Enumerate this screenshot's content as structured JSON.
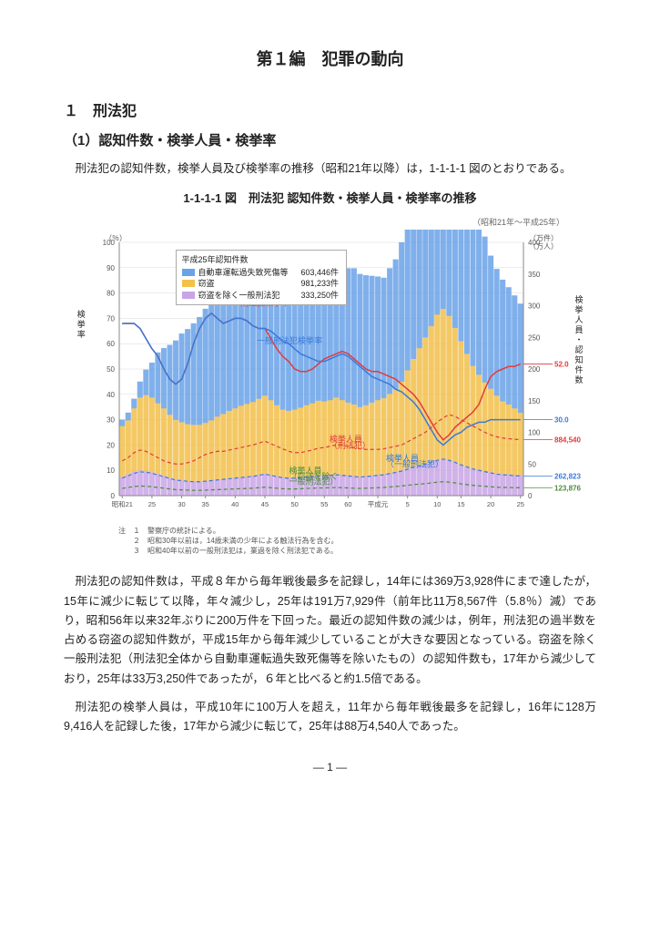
{
  "title": "第１編　犯罪の動向",
  "section_number": "１　刑法犯",
  "subsection": "（1）認知件数・検挙人員・検挙率",
  "intro": "刑法犯の認知件数，検挙人員及び検挙率の推移（昭和21年以降）は，1-1-1-1 図のとおりである。",
  "chart": {
    "title": "1-1-1-1 図　刑法犯 認知件数・検挙人員・検挙率の推移",
    "range_note": "（昭和21年～平成25年）",
    "ylabel_left_unit": "（％）",
    "ylabel_right_unit": "（万件）\n（万人）",
    "ylabel_left_text": "検挙率",
    "ylabel_right_text": "検挙人員・認知件数",
    "ylim_left": [
      0,
      100
    ],
    "ytick_left_step": 10,
    "ylim_right": [
      0,
      400
    ],
    "ytick_right_step": 50,
    "x_categories": [
      "昭和21",
      "25",
      "30",
      "35",
      "40",
      "45",
      "50",
      "55",
      "60",
      "平成元",
      "5",
      "10",
      "15",
      "20",
      "25"
    ],
    "legend_title": "平成25年認知件数",
    "legend_items": [
      {
        "label": "自動車運転過失致死傷等",
        "value": "603,446件",
        "color": "#6aa3e8"
      },
      {
        "label": "窃盗",
        "value": "981,233件",
        "color": "#f3c04b"
      },
      {
        "label": "窃盗を除く一般刑法犯",
        "value": "333,250件",
        "color": "#c9a5e6"
      }
    ],
    "series": {
      "auto_bars": {
        "color": "#6aa3e8",
        "values": [
          10,
          12,
          15,
          25,
          40,
          55,
          80,
          95,
          110,
          125,
          140,
          150,
          160,
          170,
          180,
          188,
          192,
          190,
          195,
          198,
          200,
          205,
          208,
          212,
          215,
          210,
          215,
          218,
          216,
          210,
          215,
          218,
          216,
          214,
          210,
          208,
          205,
          200,
          212,
          215,
          210,
          205,
          200,
          195,
          190,
          198,
          205,
          220,
          245,
          265,
          285,
          305,
          330,
          350,
          365,
          360,
          350,
          330,
          300,
          275,
          250,
          230,
          210,
          200,
          192,
          185,
          178,
          172
        ]
      },
      "theft_bars": {
        "color": "#f3c04b",
        "values": [
          80,
          85,
          100,
          115,
          120,
          118,
          112,
          107,
          100,
          95,
          92,
          90,
          90,
          90,
          92,
          95,
          100,
          103,
          107,
          110,
          113,
          115,
          117,
          120,
          123,
          118,
          112,
          107,
          106,
          108,
          110,
          113,
          115,
          118,
          117,
          118,
          121,
          118,
          115,
          113,
          110,
          112,
          115,
          118,
          120,
          125,
          130,
          140,
          155,
          170,
          185,
          200,
          215,
          230,
          237,
          228,
          212,
          195,
          178,
          162,
          150,
          140,
          132,
          123,
          115,
          110,
          105,
          98
        ]
      },
      "other_bars": {
        "color": "#c9a5e6",
        "values": [
          30,
          34,
          38,
          40,
          39,
          37,
          34,
          31,
          28,
          25,
          24,
          23,
          22,
          22,
          23,
          24,
          25,
          26,
          27,
          28,
          29,
          30,
          31,
          33,
          35,
          33,
          31,
          29,
          28,
          28,
          29,
          30,
          31,
          32,
          32,
          33,
          34,
          33,
          32,
          31,
          30,
          31,
          32,
          33,
          34,
          36,
          38,
          40,
          43,
          46,
          48,
          50,
          53,
          56,
          58,
          56,
          53,
          49,
          46,
          43,
          41,
          39,
          37,
          35,
          34,
          34,
          33,
          33
        ]
      },
      "arrest_rate_all": {
        "color": "#e23b3b",
        "width": 1.5,
        "label": "刑法犯検挙率",
        "values": [
          68,
          68,
          68,
          66,
          62,
          58,
          55,
          50,
          46,
          44,
          46,
          52,
          60,
          66,
          70,
          72,
          70,
          68,
          69,
          70,
          70,
          69,
          67,
          66,
          66,
          62,
          58,
          55,
          53,
          50,
          49,
          49,
          50,
          52,
          54,
          55,
          56,
          57,
          56,
          54,
          52,
          50,
          49,
          49,
          48,
          47,
          46,
          44,
          42,
          40,
          37,
          33,
          29,
          25,
          22,
          24,
          27,
          29,
          31,
          33,
          36,
          42,
          47,
          49,
          50,
          51,
          51,
          52
        ],
        "end_label": "52.0"
      },
      "arrest_rate_general": {
        "color": "#3a7ad9",
        "width": 1.5,
        "label": "一般刑法犯検挙率",
        "values": [
          68,
          68,
          68,
          66,
          62,
          58,
          55,
          50,
          46,
          44,
          46,
          52,
          60,
          66,
          70,
          72,
          70,
          68,
          69,
          70,
          70,
          69,
          67,
          66,
          66,
          65,
          63,
          61,
          60,
          58,
          56,
          55,
          54,
          53,
          53,
          54,
          55,
          56,
          55,
          53,
          51,
          49,
          47,
          46,
          45,
          44,
          42,
          41,
          39,
          37,
          34,
          30,
          26,
          22,
          20,
          22,
          24,
          25,
          27,
          28,
          29,
          29,
          30,
          30,
          30,
          30,
          30,
          30
        ],
        "end_label": "30.0"
      },
      "arrests_all": {
        "color": "#e23b3b",
        "dash": "4 3",
        "width": 1.2,
        "label": "検挙人員（刑法犯）",
        "values_right_axis": [
          55,
          60,
          68,
          72,
          70,
          65,
          60,
          55,
          52,
          50,
          50,
          52,
          55,
          60,
          65,
          68,
          70,
          70,
          72,
          74,
          76,
          78,
          80,
          83,
          86,
          82,
          78,
          74,
          70,
          68,
          68,
          70,
          72,
          75,
          76,
          78,
          80,
          80,
          78,
          76,
          74,
          73,
          73,
          73,
          74,
          76,
          78,
          80,
          85,
          90,
          95,
          100,
          108,
          116,
          123,
          128,
          125,
          120,
          115,
          110,
          105,
          100,
          96,
          93,
          91,
          90,
          89,
          88.5
        ],
        "end_label": "884,540"
      },
      "arrests_general": {
        "color": "#4b8b3b",
        "dash": "4 3",
        "width": 1.2,
        "label": "検挙人員（窃盗を除く一般刑法犯）",
        "end_label": "123,876"
      },
      "arrests_general_blue": {
        "color": "#3a7ad9",
        "dash": "4 3",
        "width": 1.2,
        "label": "検挙人員（一般刑法犯）",
        "end_label": "262,823"
      }
    },
    "background": "#ffffff",
    "grid_color": "#d8d8d8",
    "bar_width": 0.9,
    "notes": [
      "注　１　警察庁の統計による。",
      "　　２　昭和30年以前は，14歳未満の少年による触法行為を含む。",
      "　　３　昭和40年以前の一般刑法犯は，業過を除く刑法犯である。"
    ]
  },
  "para1": "刑法犯の認知件数は，平成８年から毎年戦後最多を記録し，14年には369万3,928件にまで達したが，15年に減少に転じて以降，年々減少し，25年は191万7,929件（前年比11万8,567件（5.8％）減）であり，昭和56年以来32年ぶりに200万件を下回った。最近の認知件数の減少は，例年，刑法犯の過半数を占める窃盗の認知件数が，平成15年から毎年減少していることが大きな要因となっている。窃盗を除く一般刑法犯（刑法犯全体から自動車運転過失致死傷等を除いたもの）の認知件数も，17年から減少しており，25年は33万3,250件であったが，６年と比べると約1.5倍である。",
  "para2": "刑法犯の検挙人員は，平成10年に100万人を超え，11年から毎年戦後最多を記録し，16年に128万9,416人を記録した後，17年から減少に転じて，25年は88万4,540人であった。",
  "page_num": "― 1 ―"
}
